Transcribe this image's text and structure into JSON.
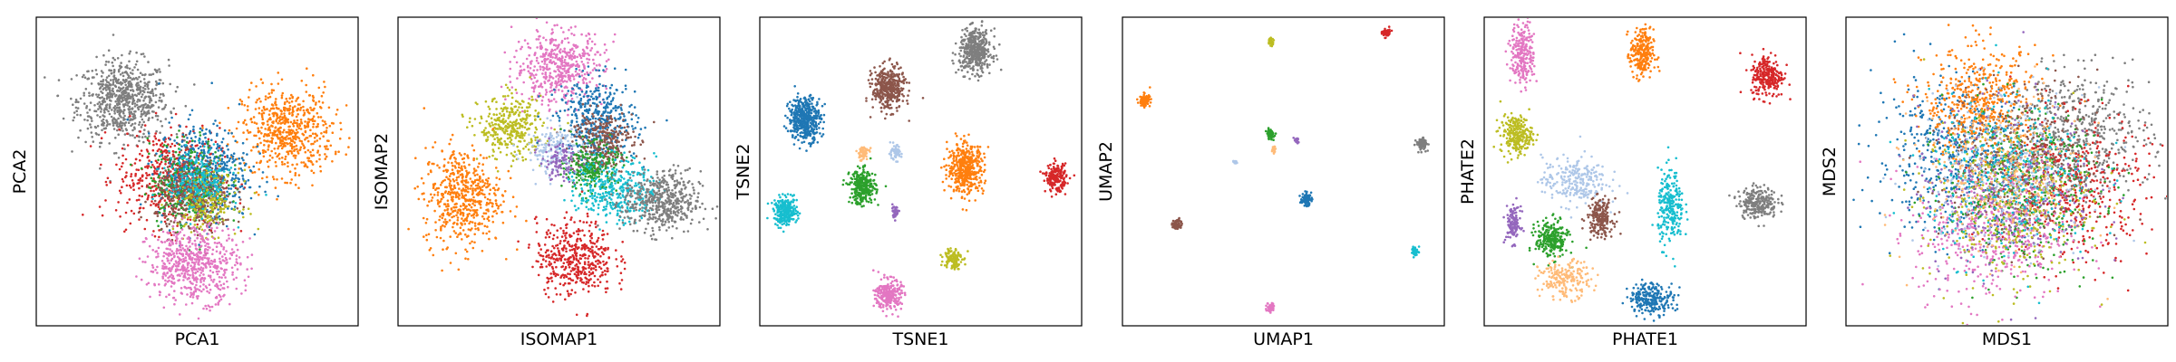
{
  "chart_data": [
    {
      "type": "scatter",
      "xlabel": "PCA1",
      "ylabel": "PCA2",
      "xlim": [
        0,
        1
      ],
      "ylim": [
        0,
        1
      ],
      "ticks": false,
      "grid": false,
      "series": [
        {
          "color": "#7f7f7f",
          "center": [
            0.27,
            0.73
          ],
          "spread": [
            0.07,
            0.065
          ],
          "n": 700
        },
        {
          "color": "#ff7f0e",
          "center": [
            0.78,
            0.63
          ],
          "spread": [
            0.07,
            0.07
          ],
          "n": 600
        },
        {
          "color": "#d62728",
          "center": [
            0.41,
            0.48
          ],
          "spread": [
            0.08,
            0.08
          ],
          "n": 500
        },
        {
          "color": "#1f77b4",
          "center": [
            0.52,
            0.5
          ],
          "spread": [
            0.07,
            0.08
          ],
          "n": 500
        },
        {
          "color": "#2ca02c",
          "center": [
            0.47,
            0.46
          ],
          "spread": [
            0.06,
            0.07
          ],
          "n": 300
        },
        {
          "color": "#8c564b",
          "center": [
            0.49,
            0.42
          ],
          "spread": [
            0.06,
            0.06
          ],
          "n": 400
        },
        {
          "color": "#bcbd22",
          "center": [
            0.53,
            0.4
          ],
          "spread": [
            0.05,
            0.05
          ],
          "n": 200
        },
        {
          "color": "#17becf",
          "center": [
            0.5,
            0.47
          ],
          "spread": [
            0.05,
            0.05
          ],
          "n": 200
        },
        {
          "color": "#e377c2",
          "center": [
            0.49,
            0.2
          ],
          "spread": [
            0.07,
            0.06
          ],
          "n": 600
        }
      ]
    },
    {
      "type": "scatter",
      "xlabel": "ISOMAP1",
      "ylabel": "ISOMAP2",
      "xlim": [
        0,
        1
      ],
      "ylim": [
        0,
        1
      ],
      "ticks": false,
      "grid": false,
      "series": [
        {
          "color": "#e377c2",
          "center": [
            0.5,
            0.84
          ],
          "spread": [
            0.07,
            0.06
          ],
          "n": 500
        },
        {
          "color": "#bcbd22",
          "center": [
            0.35,
            0.64
          ],
          "spread": [
            0.05,
            0.05
          ],
          "n": 350
        },
        {
          "color": "#1f77b4",
          "center": [
            0.62,
            0.66
          ],
          "spread": [
            0.06,
            0.07
          ],
          "n": 450
        },
        {
          "color": "#8c564b",
          "center": [
            0.63,
            0.6
          ],
          "spread": [
            0.05,
            0.05
          ],
          "n": 300
        },
        {
          "color": "#2ca02c",
          "center": [
            0.6,
            0.51
          ],
          "spread": [
            0.04,
            0.04
          ],
          "n": 250
        },
        {
          "color": "#aec7e8",
          "center": [
            0.48,
            0.57
          ],
          "spread": [
            0.04,
            0.04
          ],
          "n": 150
        },
        {
          "color": "#9467bd",
          "center": [
            0.5,
            0.53
          ],
          "spread": [
            0.03,
            0.03
          ],
          "n": 100
        },
        {
          "color": "#17becf",
          "center": [
            0.68,
            0.44
          ],
          "spread": [
            0.06,
            0.05
          ],
          "n": 350
        },
        {
          "color": "#7f7f7f",
          "center": [
            0.82,
            0.4
          ],
          "spread": [
            0.06,
            0.05
          ],
          "n": 500
        },
        {
          "color": "#ff7f0e",
          "center": [
            0.2,
            0.42
          ],
          "spread": [
            0.06,
            0.08
          ],
          "n": 550
        },
        {
          "color": "#d62728",
          "center": [
            0.55,
            0.22
          ],
          "spread": [
            0.06,
            0.06
          ],
          "n": 450
        }
      ]
    },
    {
      "type": "scatter",
      "xlabel": "TSNE1",
      "ylabel": "TSNE2",
      "xlim": [
        0,
        1
      ],
      "ylim": [
        0,
        1
      ],
      "ticks": false,
      "grid": false,
      "series": [
        {
          "color": "#7f7f7f",
          "center": [
            0.67,
            0.89
          ],
          "spread": [
            0.025,
            0.035
          ],
          "n": 450
        },
        {
          "color": "#8c564b",
          "center": [
            0.4,
            0.77
          ],
          "spread": [
            0.025,
            0.035
          ],
          "n": 400
        },
        {
          "color": "#1f77b4",
          "center": [
            0.14,
            0.67
          ],
          "spread": [
            0.025,
            0.035
          ],
          "n": 450
        },
        {
          "color": "#ffbb78",
          "center": [
            0.32,
            0.56
          ],
          "spread": [
            0.01,
            0.012
          ],
          "n": 60
        },
        {
          "color": "#aec7e8",
          "center": [
            0.42,
            0.56
          ],
          "spread": [
            0.01,
            0.012
          ],
          "n": 60
        },
        {
          "color": "#ff7f0e",
          "center": [
            0.64,
            0.51
          ],
          "spread": [
            0.028,
            0.04
          ],
          "n": 450
        },
        {
          "color": "#d62728",
          "center": [
            0.92,
            0.48
          ],
          "spread": [
            0.016,
            0.022
          ],
          "n": 200
        },
        {
          "color": "#2ca02c",
          "center": [
            0.32,
            0.45
          ],
          "spread": [
            0.02,
            0.028
          ],
          "n": 300
        },
        {
          "color": "#17becf",
          "center": [
            0.08,
            0.37
          ],
          "spread": [
            0.018,
            0.022
          ],
          "n": 250
        },
        {
          "color": "#9467bd",
          "center": [
            0.42,
            0.37
          ],
          "spread": [
            0.007,
            0.01
          ],
          "n": 40
        },
        {
          "color": "#bcbd22",
          "center": [
            0.6,
            0.22
          ],
          "spread": [
            0.014,
            0.018
          ],
          "n": 120
        },
        {
          "color": "#e377c2",
          "center": [
            0.4,
            0.1
          ],
          "spread": [
            0.02,
            0.025
          ],
          "n": 250
        }
      ]
    },
    {
      "type": "scatter",
      "xlabel": "UMAP1",
      "ylabel": "UMAP2",
      "xlim": [
        0,
        1
      ],
      "ylim": [
        0,
        1
      ],
      "ticks": false,
      "grid": false,
      "series": [
        {
          "color": "#d62728",
          "center": [
            0.82,
            0.95
          ],
          "spread": [
            0.006,
            0.007
          ],
          "n": 60
        },
        {
          "color": "#bcbd22",
          "center": [
            0.46,
            0.92
          ],
          "spread": [
            0.005,
            0.006
          ],
          "n": 40
        },
        {
          "color": "#ff7f0e",
          "center": [
            0.07,
            0.73
          ],
          "spread": [
            0.008,
            0.01
          ],
          "n": 90
        },
        {
          "color": "#7f7f7f",
          "center": [
            0.93,
            0.59
          ],
          "spread": [
            0.008,
            0.01
          ],
          "n": 90
        },
        {
          "color": "#2ca02c",
          "center": [
            0.46,
            0.62
          ],
          "spread": [
            0.006,
            0.008
          ],
          "n": 60
        },
        {
          "color": "#9467bd",
          "center": [
            0.54,
            0.6
          ],
          "spread": [
            0.004,
            0.004
          ],
          "n": 20
        },
        {
          "color": "#ffbb78",
          "center": [
            0.47,
            0.57
          ],
          "spread": [
            0.003,
            0.006
          ],
          "n": 15
        },
        {
          "color": "#aec7e8",
          "center": [
            0.35,
            0.53
          ],
          "spread": [
            0.003,
            0.003
          ],
          "n": 10
        },
        {
          "color": "#1f77b4",
          "center": [
            0.57,
            0.41
          ],
          "spread": [
            0.008,
            0.01
          ],
          "n": 80
        },
        {
          "color": "#8c564b",
          "center": [
            0.17,
            0.33
          ],
          "spread": [
            0.007,
            0.009
          ],
          "n": 60
        },
        {
          "color": "#17becf",
          "center": [
            0.91,
            0.24
          ],
          "spread": [
            0.006,
            0.007
          ],
          "n": 40
        },
        {
          "color": "#e377c2",
          "center": [
            0.46,
            0.06
          ],
          "spread": [
            0.006,
            0.008
          ],
          "n": 50
        }
      ]
    },
    {
      "type": "scatter",
      "xlabel": "PHATE1",
      "ylabel": "PHATE2",
      "xlim": [
        0,
        1
      ],
      "ylim": [
        0,
        1
      ],
      "ticks": false,
      "grid": false,
      "series": [
        {
          "color": "#e377c2",
          "center": [
            0.12,
            0.88
          ],
          "spread": [
            0.018,
            0.05
          ],
          "n": 250
        },
        {
          "color": "#ff7f0e",
          "center": [
            0.49,
            0.88
          ],
          "spread": [
            0.018,
            0.04
          ],
          "n": 250
        },
        {
          "color": "#d62728",
          "center": [
            0.88,
            0.81
          ],
          "spread": [
            0.025,
            0.035
          ],
          "n": 250
        },
        {
          "color": "#bcbd22",
          "center": [
            0.1,
            0.62
          ],
          "spread": [
            0.025,
            0.03
          ],
          "n": 250
        },
        {
          "color": "#aec7e8",
          "center": [
            0.28,
            0.47
          ],
          "spread": [
            0.05,
            0.04
          ],
          "n": 250
        },
        {
          "color": "#7f7f7f",
          "center": [
            0.85,
            0.4
          ],
          "spread": [
            0.03,
            0.025
          ],
          "n": 250
        },
        {
          "color": "#17becf",
          "center": [
            0.58,
            0.38
          ],
          "spread": [
            0.02,
            0.06
          ],
          "n": 250
        },
        {
          "color": "#8c564b",
          "center": [
            0.36,
            0.35
          ],
          "spread": [
            0.02,
            0.03
          ],
          "n": 200
        },
        {
          "color": "#9467bd",
          "center": [
            0.09,
            0.33
          ],
          "spread": [
            0.012,
            0.03
          ],
          "n": 120
        },
        {
          "color": "#2ca02c",
          "center": [
            0.21,
            0.28
          ],
          "spread": [
            0.025,
            0.03
          ],
          "n": 250
        },
        {
          "color": "#ffbb78",
          "center": [
            0.25,
            0.15
          ],
          "spread": [
            0.04,
            0.03
          ],
          "n": 200
        },
        {
          "color": "#1f77b4",
          "center": [
            0.52,
            0.09
          ],
          "spread": [
            0.035,
            0.025
          ],
          "n": 250
        }
      ]
    },
    {
      "type": "scatter",
      "xlabel": "MDS1",
      "ylabel": "MDS2",
      "xlim": [
        0,
        1
      ],
      "ylim": [
        0,
        1
      ],
      "ticks": false,
      "grid": false,
      "series": [
        {
          "color": "#1f77b4",
          "center": [
            0.33,
            0.55
          ],
          "spread": [
            0.12,
            0.13
          ],
          "n": 500
        },
        {
          "color": "#ff7f0e",
          "center": [
            0.42,
            0.72
          ],
          "spread": [
            0.09,
            0.09
          ],
          "n": 500
        },
        {
          "color": "#7f7f7f",
          "center": [
            0.73,
            0.62
          ],
          "spread": [
            0.11,
            0.1
          ],
          "n": 500
        },
        {
          "color": "#d62728",
          "center": [
            0.7,
            0.45
          ],
          "spread": [
            0.12,
            0.12
          ],
          "n": 450
        },
        {
          "color": "#2ca02c",
          "center": [
            0.55,
            0.45
          ],
          "spread": [
            0.12,
            0.13
          ],
          "n": 450
        },
        {
          "color": "#8c564b",
          "center": [
            0.55,
            0.52
          ],
          "spread": [
            0.12,
            0.13
          ],
          "n": 400
        },
        {
          "color": "#e377c2",
          "center": [
            0.45,
            0.3
          ],
          "spread": [
            0.12,
            0.11
          ],
          "n": 450
        },
        {
          "color": "#bcbd22",
          "center": [
            0.5,
            0.4
          ],
          "spread": [
            0.13,
            0.13
          ],
          "n": 350
        },
        {
          "color": "#9467bd",
          "center": [
            0.5,
            0.45
          ],
          "spread": [
            0.14,
            0.14
          ],
          "n": 300
        },
        {
          "color": "#17becf",
          "center": [
            0.52,
            0.48
          ],
          "spread": [
            0.13,
            0.13
          ],
          "n": 300
        },
        {
          "color": "#aec7e8",
          "center": [
            0.48,
            0.5
          ],
          "spread": [
            0.13,
            0.13
          ],
          "n": 250
        },
        {
          "color": "#ffbb78",
          "center": [
            0.48,
            0.48
          ],
          "spread": [
            0.13,
            0.13
          ],
          "n": 250
        }
      ]
    }
  ]
}
